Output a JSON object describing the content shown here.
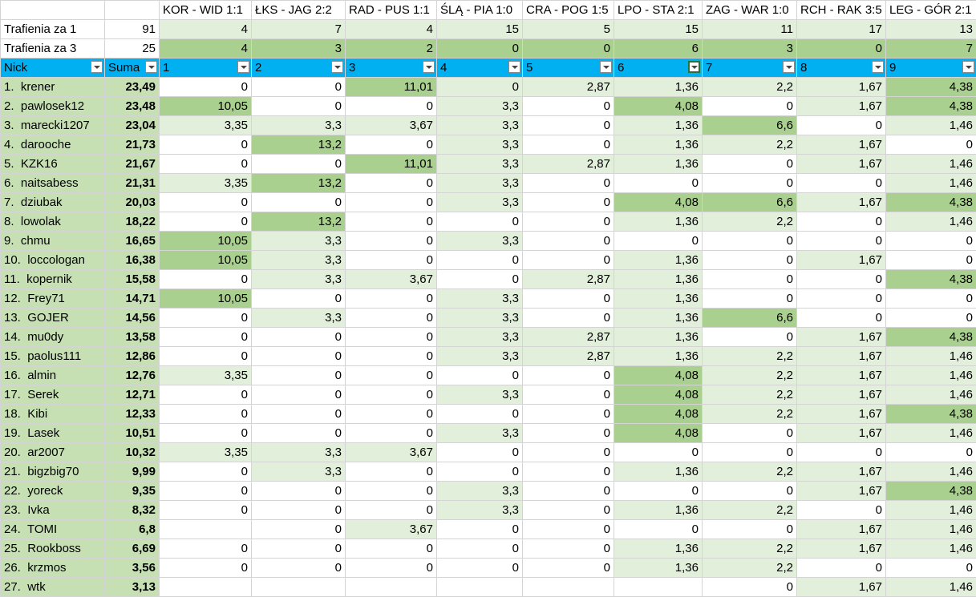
{
  "header": {
    "matches": [
      "KOR - WID 1:1",
      "ŁKS - JAG 2:2",
      "RAD - PUS 1:1",
      "ŚLĄ - PIA 1:0",
      "CRA - POG 1:5",
      "LPO - STA 2:1",
      "ZAG - WAR 1:0",
      "RCH - RAK 3:5",
      "LEG - GÓR 2:1"
    ]
  },
  "hits1": {
    "label": "Trafienia za 1",
    "total": "91",
    "values": [
      "4",
      "7",
      "4",
      "15",
      "5",
      "15",
      "11",
      "17",
      "13"
    ]
  },
  "hits3": {
    "label": "Trafienia za 3",
    "total": "25",
    "values": [
      "4",
      "3",
      "2",
      "0",
      "0",
      "6",
      "3",
      "0",
      "7"
    ]
  },
  "columns": {
    "nick": "Nick",
    "sum": "Suma",
    "nums": [
      "1",
      "2",
      "3",
      "4",
      "5",
      "6",
      "7",
      "8",
      "9"
    ]
  },
  "colors": {
    "header_blue": "#00b0f0",
    "light_green": "#e2efda",
    "dark_green": "#a9d08e",
    "name_green": "#c6e0b4"
  },
  "rows": [
    {
      "rank": "1.",
      "nick": "krener",
      "sum": "23,49",
      "v": [
        "0",
        "0",
        "11,01",
        "0",
        "2,87",
        "1,36",
        "2,2",
        "1,67",
        "4,38"
      ],
      "s": [
        0,
        0,
        2,
        1,
        1,
        1,
        1,
        1,
        2
      ]
    },
    {
      "rank": "2.",
      "nick": "pawlosek12",
      "sum": "23,48",
      "v": [
        "10,05",
        "0",
        "0",
        "3,3",
        "0",
        "4,08",
        "0",
        "1,67",
        "4,38"
      ],
      "s": [
        2,
        0,
        0,
        1,
        0,
        2,
        0,
        1,
        2
      ]
    },
    {
      "rank": "3.",
      "nick": "marecki1207",
      "sum": "23,04",
      "v": [
        "3,35",
        "3,3",
        "3,67",
        "3,3",
        "0",
        "1,36",
        "6,6",
        "0",
        "1,46"
      ],
      "s": [
        1,
        1,
        1,
        1,
        0,
        1,
        2,
        0,
        1
      ]
    },
    {
      "rank": "4.",
      "nick": "darooche",
      "sum": "21,73",
      "v": [
        "0",
        "13,2",
        "0",
        "3,3",
        "0",
        "1,36",
        "2,2",
        "1,67",
        "0"
      ],
      "s": [
        0,
        2,
        0,
        1,
        0,
        1,
        1,
        1,
        0
      ]
    },
    {
      "rank": "5.",
      "nick": "KZK16",
      "sum": "21,67",
      "v": [
        "0",
        "0",
        "11,01",
        "3,3",
        "2,87",
        "1,36",
        "0",
        "1,67",
        "1,46"
      ],
      "s": [
        0,
        0,
        2,
        1,
        1,
        1,
        0,
        1,
        1
      ]
    },
    {
      "rank": "6.",
      "nick": "naitsabess",
      "sum": "21,31",
      "v": [
        "3,35",
        "13,2",
        "0",
        "3,3",
        "0",
        "0",
        "0",
        "0",
        "1,46"
      ],
      "s": [
        1,
        2,
        0,
        1,
        0,
        0,
        0,
        0,
        1
      ]
    },
    {
      "rank": "7.",
      "nick": "dziubak",
      "sum": "20,03",
      "v": [
        "0",
        "0",
        "0",
        "3,3",
        "0",
        "4,08",
        "6,6",
        "1,67",
        "4,38"
      ],
      "s": [
        0,
        0,
        0,
        1,
        0,
        2,
        2,
        1,
        2
      ]
    },
    {
      "rank": "8.",
      "nick": "lowolak",
      "sum": "18,22",
      "v": [
        "0",
        "13,2",
        "0",
        "0",
        "0",
        "1,36",
        "2,2",
        "0",
        "1,46"
      ],
      "s": [
        0,
        2,
        0,
        0,
        0,
        1,
        1,
        0,
        1
      ]
    },
    {
      "rank": "9.",
      "nick": "chmu",
      "sum": "16,65",
      "v": [
        "10,05",
        "3,3",
        "0",
        "3,3",
        "0",
        "0",
        "0",
        "0",
        "0"
      ],
      "s": [
        2,
        1,
        0,
        1,
        0,
        0,
        0,
        0,
        0
      ]
    },
    {
      "rank": "10.",
      "nick": "loccologan",
      "sum": "16,38",
      "v": [
        "10,05",
        "3,3",
        "0",
        "0",
        "0",
        "1,36",
        "0",
        "1,67",
        "0"
      ],
      "s": [
        2,
        1,
        0,
        0,
        0,
        1,
        0,
        1,
        0
      ]
    },
    {
      "rank": "11.",
      "nick": "kopernik",
      "sum": "15,58",
      "v": [
        "0",
        "3,3",
        "3,67",
        "0",
        "2,87",
        "1,36",
        "0",
        "0",
        "4,38"
      ],
      "s": [
        0,
        1,
        1,
        0,
        1,
        1,
        0,
        0,
        2
      ]
    },
    {
      "rank": "12.",
      "nick": "Frey71",
      "sum": "14,71",
      "v": [
        "10,05",
        "0",
        "0",
        "3,3",
        "0",
        "1,36",
        "0",
        "0",
        "0"
      ],
      "s": [
        2,
        0,
        0,
        1,
        0,
        1,
        0,
        0,
        0
      ]
    },
    {
      "rank": "13.",
      "nick": "GOJER",
      "sum": "14,56",
      "v": [
        "0",
        "3,3",
        "0",
        "3,3",
        "0",
        "1,36",
        "6,6",
        "0",
        "0"
      ],
      "s": [
        0,
        1,
        0,
        1,
        0,
        1,
        2,
        0,
        0
      ]
    },
    {
      "rank": "14.",
      "nick": "mu0dy",
      "sum": "13,58",
      "v": [
        "0",
        "0",
        "0",
        "3,3",
        "2,87",
        "1,36",
        "0",
        "1,67",
        "4,38"
      ],
      "s": [
        0,
        0,
        0,
        1,
        1,
        1,
        0,
        1,
        2
      ]
    },
    {
      "rank": "15.",
      "nick": "paolus111",
      "sum": "12,86",
      "v": [
        "0",
        "0",
        "0",
        "3,3",
        "2,87",
        "1,36",
        "2,2",
        "1,67",
        "1,46"
      ],
      "s": [
        0,
        0,
        0,
        1,
        1,
        1,
        1,
        1,
        1
      ]
    },
    {
      "rank": "16.",
      "nick": "almin",
      "sum": "12,76",
      "v": [
        "3,35",
        "0",
        "0",
        "0",
        "0",
        "4,08",
        "2,2",
        "1,67",
        "1,46"
      ],
      "s": [
        1,
        0,
        0,
        0,
        0,
        2,
        1,
        1,
        1
      ]
    },
    {
      "rank": "17.",
      "nick": "Serek",
      "sum": "12,71",
      "v": [
        "0",
        "0",
        "0",
        "3,3",
        "0",
        "4,08",
        "2,2",
        "1,67",
        "1,46"
      ],
      "s": [
        0,
        0,
        0,
        1,
        0,
        2,
        1,
        1,
        1
      ]
    },
    {
      "rank": "18.",
      "nick": "Kibi",
      "sum": "12,33",
      "v": [
        "0",
        "0",
        "0",
        "0",
        "0",
        "4,08",
        "2,2",
        "1,67",
        "4,38"
      ],
      "s": [
        0,
        0,
        0,
        0,
        0,
        2,
        1,
        1,
        2
      ]
    },
    {
      "rank": "19.",
      "nick": "Lasek",
      "sum": "10,51",
      "v": [
        "0",
        "0",
        "0",
        "3,3",
        "0",
        "4,08",
        "0",
        "1,67",
        "1,46"
      ],
      "s": [
        0,
        0,
        0,
        1,
        0,
        2,
        0,
        1,
        1
      ]
    },
    {
      "rank": "20.",
      "nick": "ar2007",
      "sum": "10,32",
      "v": [
        "3,35",
        "3,3",
        "3,67",
        "0",
        "0",
        "0",
        "0",
        "0",
        "0"
      ],
      "s": [
        1,
        1,
        1,
        0,
        0,
        0,
        0,
        0,
        0
      ]
    },
    {
      "rank": "21.",
      "nick": "bigzbig70",
      "sum": "9,99",
      "v": [
        "0",
        "3,3",
        "0",
        "0",
        "0",
        "1,36",
        "2,2",
        "1,67",
        "1,46"
      ],
      "s": [
        0,
        1,
        0,
        0,
        0,
        1,
        1,
        1,
        1
      ]
    },
    {
      "rank": "22.",
      "nick": "yoreck",
      "sum": "9,35",
      "v": [
        "0",
        "0",
        "0",
        "3,3",
        "0",
        "0",
        "0",
        "1,67",
        "4,38"
      ],
      "s": [
        0,
        0,
        0,
        1,
        0,
        0,
        0,
        1,
        2
      ]
    },
    {
      "rank": "23.",
      "nick": "Ivka",
      "sum": "8,32",
      "v": [
        "0",
        "0",
        "0",
        "3,3",
        "0",
        "1,36",
        "2,2",
        "0",
        "1,46"
      ],
      "s": [
        0,
        0,
        0,
        1,
        0,
        1,
        1,
        0,
        1
      ]
    },
    {
      "rank": "24.",
      "nick": "TOMI",
      "sum": "6,8",
      "v": [
        "",
        "0",
        "3,67",
        "0",
        "0",
        "0",
        "0",
        "1,67",
        "1,46"
      ],
      "s": [
        0,
        0,
        1,
        0,
        0,
        0,
        0,
        1,
        1
      ]
    },
    {
      "rank": "25.",
      "nick": "Rookboss",
      "sum": "6,69",
      "v": [
        "0",
        "0",
        "0",
        "0",
        "0",
        "1,36",
        "2,2",
        "1,67",
        "1,46"
      ],
      "s": [
        0,
        0,
        0,
        0,
        0,
        1,
        1,
        1,
        1
      ]
    },
    {
      "rank": "26.",
      "nick": "krzmos",
      "sum": "3,56",
      "v": [
        "0",
        "0",
        "0",
        "0",
        "0",
        "1,36",
        "2,2",
        "0",
        "0"
      ],
      "s": [
        0,
        0,
        0,
        0,
        0,
        1,
        1,
        0,
        0
      ]
    },
    {
      "rank": "27.",
      "nick": "wtk",
      "sum": "3,13",
      "v": [
        "",
        "",
        "",
        "",
        "",
        "",
        "0",
        "1,67",
        "1,46"
      ],
      "s": [
        0,
        0,
        0,
        0,
        0,
        0,
        0,
        1,
        1
      ]
    }
  ]
}
